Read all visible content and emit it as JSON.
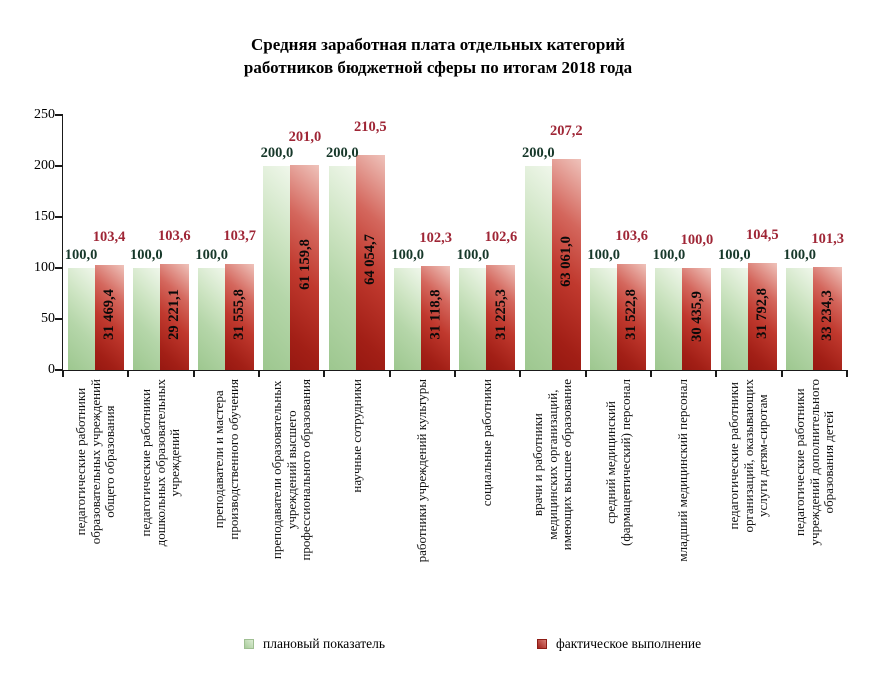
{
  "title_lines": [
    "Средняя заработная плата отдельных категорий",
    "работников бюджетной сферы по итогам 2018 года"
  ],
  "legend": [
    {
      "label": "плановый показатель",
      "color": "#aed0a0"
    },
    {
      "label": "фактическое выполнение",
      "color": "#a82820"
    }
  ],
  "colors": {
    "plan_bar_light": "#f0f7eb",
    "plan_bar_dark": "#9dc78f",
    "fact_bar_light": "#efc3bb",
    "fact_bar_dark": "#971811",
    "plan_value_label": "#17382a",
    "fact_value_label": "#9f2636",
    "axis": "#1a1a1a"
  },
  "chart_data": {
    "type": "bar",
    "title": "Средняя заработная плата отдельных категорий работников бюджетной сферы по итогам 2018 года",
    "xlabel": "",
    "ylabel": "",
    "ylim": [
      0,
      250
    ],
    "yticks": [
      0,
      50,
      100,
      150,
      200,
      250
    ],
    "grid": false,
    "legend_position": "bottom",
    "categories": [
      "педагогические работники образовательных учреждений общего образования",
      "педагогические работники дошкольных образовательных учреждений",
      "преподаватели и мастера производственного обучения",
      "преподаватели образовательных учреждений высшего профессионального образования",
      "научные сотрудники",
      "работники учреждений культуры",
      "социальные работники",
      "врачи и работники медицинских организаций, имеющих высшее образование",
      "средний медицинский (фармацевтический) персонал",
      "младший медицинский персонал",
      "педагогические работники организаций, оказывающих услуги детям-сиротам",
      "педагогические работники учреждений дополнительного образования детей"
    ],
    "category_label_lines": [
      [
        "педагогические работники",
        "образовательных учреждений",
        "общего образования"
      ],
      [
        "педагогические работники",
        "дошкольных образовательных",
        "учреждений"
      ],
      [
        "преподаватели и мастера",
        "производственного обучения"
      ],
      [
        "преподаватели образовательных",
        "учреждений высшего",
        "профессионального образования"
      ],
      [
        "научные сотрудники"
      ],
      [
        "работники учреждений культуры"
      ],
      [
        "социальные работники"
      ],
      [
        "врачи и работники",
        "медицинских организаций,",
        "имеющих высшее образование"
      ],
      [
        "средний медицинский",
        "(фармацевтический) персонал"
      ],
      [
        "младший медицинский персонал"
      ],
      [
        "педагогические работники",
        "организаций, оказывающих",
        "услуги детям-сиротам"
      ],
      [
        "педагогические работники",
        "учреждений дополнительного",
        "образования детей"
      ]
    ],
    "series": [
      {
        "name": "плановый показатель",
        "values": [
          100.0,
          100.0,
          100.0,
          200.0,
          200.0,
          100.0,
          100.0,
          200.0,
          100.0,
          100.0,
          100.0,
          100.0
        ],
        "labels": [
          "100,0",
          "100,0",
          "100,0",
          "200,0",
          "200,0",
          "100,0",
          "100,0",
          "200,0",
          "100,0",
          "100,0",
          "100,0",
          "100,0"
        ]
      },
      {
        "name": "фактическое выполнение",
        "values": [
          103.4,
          103.6,
          103.7,
          201.0,
          210.5,
          102.3,
          102.6,
          207.2,
          103.6,
          100.0,
          104.5,
          101.3
        ],
        "labels": [
          "103,4",
          "103,6",
          "103,7",
          "201,0",
          "210,5",
          "102,3",
          "102,6",
          "207,2",
          "103,6",
          "100,0",
          "104,5",
          "101,3"
        ],
        "bar_text": [
          "31 469,4",
          "29 221,1",
          "31 555,8",
          "61 159,8",
          "64 054,7",
          "31 118,8",
          "31 225,3",
          "63 061,0",
          "31 522,8",
          "30 435,9",
          "31 792,8",
          "33 234,3"
        ]
      }
    ]
  }
}
